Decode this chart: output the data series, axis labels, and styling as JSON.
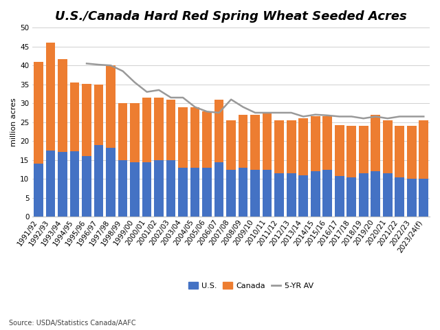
{
  "title": "U.S./Canada Hard Red Spring Wheat Seeded Acres",
  "ylabel": "million acres",
  "source": "Source: USDA/Statistics Canada/AAFC",
  "categories": [
    "1991/92",
    "1992/93",
    "1993/94",
    "1994/95",
    "1995/96",
    "1996/97",
    "1997/98",
    "1998/99",
    "1999/00",
    "2000/01",
    "2001/02",
    "2002/03",
    "2003/04",
    "2004/05",
    "2005/06",
    "2006/07",
    "2007/08",
    "2008/09",
    "2009/10",
    "2010/11",
    "2011/12",
    "2012/13",
    "2013/14",
    "2014/15",
    "2015/16",
    "2016/17",
    "2017/18",
    "2018/19",
    "2019/20",
    "2020/21",
    "2021/22",
    "2022/23",
    "2023/24(f)"
  ],
  "us_values": [
    14.0,
    17.5,
    17.2,
    17.3,
    16.1,
    19.0,
    18.3,
    15.0,
    14.5,
    14.5,
    15.0,
    15.0,
    13.0,
    13.0,
    13.0,
    14.5,
    12.5,
    13.0,
    12.5,
    12.5,
    11.5,
    11.5,
    11.0,
    12.0,
    12.5,
    10.8,
    10.5,
    11.5,
    12.0,
    11.5,
    10.5,
    10.0,
    10.0
  ],
  "canada_values": [
    27.0,
    28.5,
    24.5,
    18.2,
    19.0,
    16.0,
    21.7,
    15.0,
    15.5,
    17.0,
    16.5,
    16.0,
    16.0,
    16.0,
    14.8,
    16.5,
    13.0,
    14.0,
    14.5,
    15.0,
    14.0,
    14.0,
    15.0,
    14.5,
    14.0,
    13.5,
    13.5,
    12.5,
    15.0,
    14.0,
    13.5,
    14.0,
    15.5
  ],
  "five_yr_avg": [
    null,
    null,
    null,
    null,
    40.5,
    40.2,
    40.0,
    38.5,
    35.5,
    33.0,
    33.5,
    31.5,
    31.5,
    29.0,
    27.8,
    27.5,
    31.0,
    29.0,
    27.5,
    27.5,
    27.5,
    27.5,
    26.5,
    27.0,
    26.8,
    26.5,
    26.5,
    26.0,
    26.5,
    26.0,
    26.5,
    26.5,
    26.5
  ],
  "us_color": "#4472C4",
  "canada_color": "#ED7D31",
  "avg_color": "#999999",
  "background_color": "#FFFFFF",
  "ylim": [
    0,
    50
  ],
  "yticks": [
    0,
    5,
    10,
    15,
    20,
    25,
    30,
    35,
    40,
    45,
    50
  ],
  "title_fontsize": 13,
  "axis_label_fontsize": 8,
  "tick_fontsize": 7.5,
  "legend_fontsize": 8,
  "source_fontsize": 7
}
